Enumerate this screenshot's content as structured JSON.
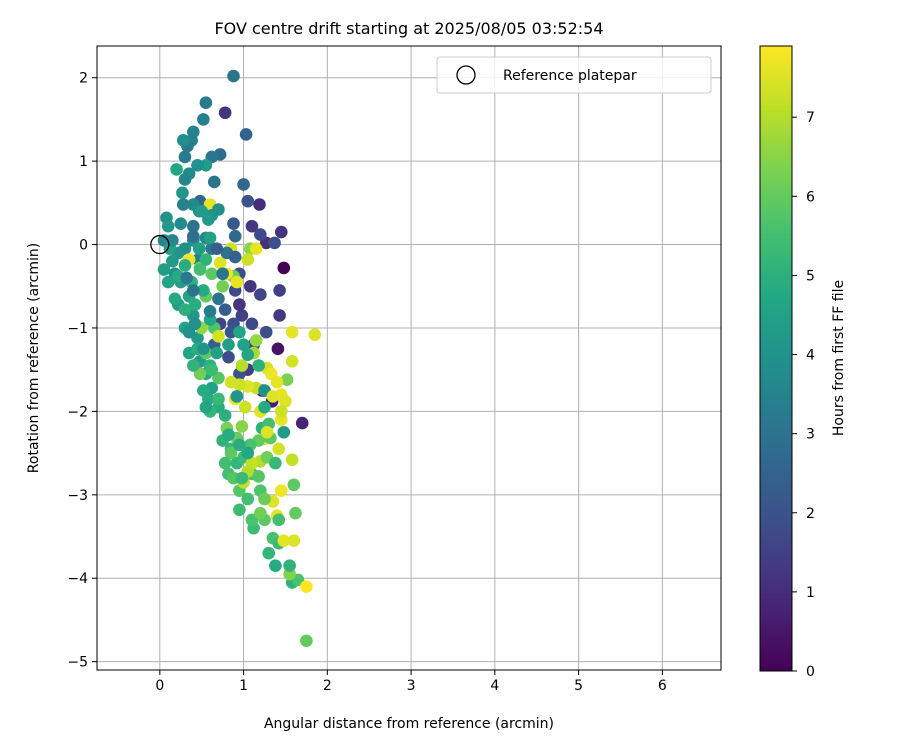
{
  "chart_data": {
    "type": "scatter",
    "title": "FOV centre drift starting at 2025/08/05 03:52:54",
    "xlabel": "Angular distance from reference (arcmin)",
    "ylabel": "Rotation from reference (arcmin)",
    "xlim": [
      -0.75,
      6.7
    ],
    "ylim": [
      -5.1,
      2.38
    ],
    "xticks": [
      0,
      1,
      2,
      3,
      4,
      5,
      6
    ],
    "yticks": [
      -5,
      -4,
      -3,
      -2,
      -1,
      0,
      1,
      2
    ],
    "xtick_labels": [
      "0",
      "1",
      "2",
      "3",
      "4",
      "5",
      "6"
    ],
    "ytick_labels": [
      "−5",
      "−4",
      "−3",
      "−2",
      "−1",
      "0",
      "1",
      "2"
    ],
    "grid": true,
    "legend": {
      "position": "top-right",
      "entries": [
        "Reference platepar"
      ]
    },
    "reference_point": {
      "x": 0,
      "y": 0
    },
    "colorbar": {
      "label": "Hours from first FF file",
      "min": 0,
      "max": 7.9,
      "ticks": [
        0,
        1,
        2,
        3,
        4,
        5,
        6,
        7
      ],
      "tick_labels": [
        "0",
        "1",
        "2",
        "3",
        "4",
        "5",
        "6",
        "7"
      ],
      "colormap": "viridis"
    },
    "series": [
      {
        "points": [
          [
            1.48,
            -0.28,
            0.0
          ],
          [
            1.41,
            -1.25,
            0.4
          ],
          [
            1.7,
            -2.14,
            0.8
          ],
          [
            1.45,
            0.15,
            1.2
          ],
          [
            1.19,
            0.48,
            1.0
          ],
          [
            1.1,
            0.22,
            1.3
          ],
          [
            1.27,
            0.02,
            1.1
          ],
          [
            1.43,
            -0.55,
            1.4
          ],
          [
            1.2,
            -0.6,
            1.6
          ],
          [
            1.37,
            0.02,
            1.9
          ],
          [
            0.98,
            -0.85,
            1.5
          ],
          [
            1.43,
            -0.85,
            1.3
          ],
          [
            1.22,
            -1.75,
            0.8
          ],
          [
            1.34,
            -1.88,
            0.6
          ],
          [
            1.2,
            0.12,
            1.7
          ],
          [
            0.9,
            -0.55,
            1.8
          ],
          [
            0.88,
            -0.95,
            1.9
          ],
          [
            1.05,
            -1.5,
            1.4
          ],
          [
            0.78,
            1.58,
            1.2
          ],
          [
            0.95,
            -0.72,
            1.2
          ],
          [
            0.72,
            -0.95,
            1.6
          ],
          [
            0.85,
            -1.05,
            2.1
          ],
          [
            0.65,
            -1.2,
            2.4
          ],
          [
            0.82,
            -1.35,
            1.8
          ],
          [
            0.95,
            -1.55,
            2.0
          ],
          [
            1.12,
            -1.2,
            1.5
          ],
          [
            1.27,
            -1.05,
            1.9
          ],
          [
            1.05,
            0.52,
            2.0
          ],
          [
            0.88,
            0.25,
            2.2
          ],
          [
            0.95,
            -0.35,
            1.9
          ],
          [
            1.03,
            1.32,
            2.5
          ],
          [
            1.0,
            0.72,
            2.6
          ],
          [
            0.88,
            2.02,
            3.0
          ],
          [
            0.72,
            1.08,
            2.8
          ],
          [
            0.62,
            1.05,
            3.1
          ],
          [
            0.55,
            1.7,
            3.3
          ],
          [
            0.52,
            1.5,
            3.4
          ],
          [
            0.65,
            0.75,
            3.0
          ],
          [
            0.48,
            0.52,
            2.6
          ],
          [
            0.4,
            1.35,
            3.5
          ],
          [
            0.38,
            1.25,
            3.4
          ],
          [
            0.33,
            1.18,
            3.3
          ],
          [
            0.28,
            1.25,
            3.8
          ],
          [
            0.35,
            0.85,
            3.7
          ],
          [
            0.3,
            0.78,
            3.6
          ],
          [
            0.27,
            0.62,
            4.1
          ],
          [
            0.2,
            0.9,
            4.7
          ],
          [
            0.4,
            0.48,
            3.7
          ],
          [
            0.47,
            0.4,
            3.8
          ],
          [
            0.58,
            0.4,
            3.5
          ],
          [
            0.55,
            0.08,
            3.6
          ],
          [
            0.62,
            -0.05,
            3.2
          ],
          [
            0.4,
            0.22,
            3.0
          ],
          [
            0.46,
            -0.18,
            3.5
          ],
          [
            0.3,
            -0.05,
            3.9
          ],
          [
            0.22,
            -0.1,
            4.1
          ],
          [
            0.15,
            -0.2,
            4.3
          ],
          [
            0.08,
            0.32,
            4.0
          ],
          [
            0.1,
            0.22,
            4.2
          ],
          [
            0.05,
            0.05,
            3.6
          ],
          [
            0.18,
            -0.35,
            3.9
          ],
          [
            0.25,
            -0.45,
            4.4
          ],
          [
            0.35,
            -0.62,
            4.6
          ],
          [
            0.22,
            -0.72,
            4.4
          ],
          [
            0.4,
            -0.85,
            4.2
          ],
          [
            0.3,
            -1.0,
            4.5
          ],
          [
            0.45,
            -1.12,
            4.3
          ],
          [
            0.35,
            -1.3,
            4.6
          ],
          [
            0.48,
            -1.4,
            4.4
          ],
          [
            0.55,
            -1.55,
            4.7
          ],
          [
            0.62,
            -1.72,
            4.5
          ],
          [
            0.58,
            -1.85,
            4.8
          ],
          [
            0.7,
            -1.95,
            4.9
          ],
          [
            0.78,
            -2.05,
            5.0
          ],
          [
            0.75,
            -2.35,
            5.1
          ],
          [
            0.85,
            -2.45,
            5.3
          ],
          [
            0.92,
            -2.62,
            5.2
          ],
          [
            0.82,
            -2.75,
            5.5
          ],
          [
            1.0,
            -2.55,
            5.4
          ],
          [
            1.1,
            -2.75,
            5.6
          ],
          [
            0.95,
            -2.95,
            5.8
          ],
          [
            1.05,
            -3.05,
            5.5
          ],
          [
            1.2,
            -2.95,
            5.7
          ],
          [
            1.25,
            -3.3,
            5.9
          ],
          [
            1.12,
            -3.4,
            5.4
          ],
          [
            1.35,
            -3.52,
            5.6
          ],
          [
            1.42,
            -3.58,
            5.3
          ],
          [
            1.3,
            -3.7,
            5.2
          ],
          [
            1.38,
            -3.85,
            4.8
          ],
          [
            1.58,
            -4.05,
            5.0
          ],
          [
            1.65,
            -4.02,
            5.6
          ],
          [
            1.75,
            -4.75,
            6.0
          ],
          [
            1.55,
            -3.95,
            6.4
          ],
          [
            0.95,
            -3.18,
            5.4
          ],
          [
            1.1,
            -3.3,
            5.6
          ],
          [
            0.48,
            -1.55,
            6.2
          ],
          [
            0.55,
            -1.3,
            5.9
          ],
          [
            0.6,
            -1.45,
            5.0
          ],
          [
            0.7,
            -1.6,
            5.8
          ],
          [
            0.65,
            -1.0,
            5.7
          ],
          [
            0.5,
            -1.0,
            6.6
          ],
          [
            0.55,
            -0.62,
            6.0
          ],
          [
            0.48,
            -0.28,
            6.3
          ],
          [
            0.62,
            -0.35,
            5.9
          ],
          [
            0.75,
            -0.5,
            6.2
          ],
          [
            0.88,
            -0.38,
            6.1
          ],
          [
            1.08,
            -0.05,
            6.5
          ],
          [
            1.05,
            -0.18,
            7.3
          ],
          [
            0.85,
            -0.05,
            7.4
          ],
          [
            0.72,
            -0.22,
            7.5
          ],
          [
            0.8,
            -0.35,
            7.7
          ],
          [
            0.92,
            -0.45,
            7.6
          ],
          [
            0.35,
            -0.18,
            7.7
          ],
          [
            0.6,
            0.48,
            7.6
          ],
          [
            1.85,
            -1.08,
            7.5
          ],
          [
            1.58,
            -1.4,
            7.4
          ],
          [
            1.52,
            -1.62,
            6.3
          ],
          [
            1.45,
            -1.8,
            7.6
          ],
          [
            1.5,
            -1.88,
            7.5
          ],
          [
            1.28,
            -1.48,
            7.4
          ],
          [
            1.33,
            -1.55,
            7.7
          ],
          [
            1.4,
            -1.65,
            7.6
          ],
          [
            1.15,
            -1.72,
            7.2
          ],
          [
            1.05,
            -1.7,
            7.5
          ],
          [
            0.95,
            -1.68,
            7.3
          ],
          [
            0.85,
            -1.65,
            7.4
          ],
          [
            0.9,
            -1.85,
            7.6
          ],
          [
            1.02,
            -1.95,
            7.3
          ],
          [
            1.2,
            -2.0,
            7.5
          ],
          [
            1.45,
            -2.1,
            7.6
          ],
          [
            1.42,
            -2.45,
            7.4
          ],
          [
            1.25,
            -2.33,
            7.6
          ],
          [
            1.2,
            -2.6,
            7.0
          ],
          [
            1.1,
            -2.62,
            7.2
          ],
          [
            1.05,
            -2.72,
            7.0
          ],
          [
            1.0,
            -2.85,
            7.1
          ],
          [
            1.35,
            -3.08,
            7.5
          ],
          [
            1.45,
            -2.95,
            7.7
          ],
          [
            1.4,
            -3.25,
            7.6
          ],
          [
            1.48,
            -3.55,
            7.6
          ],
          [
            1.6,
            -3.55,
            7.5
          ],
          [
            1.58,
            -2.58,
            7.2
          ],
          [
            1.75,
            -4.1,
            7.9
          ],
          [
            1.45,
            -2.0,
            7.3
          ],
          [
            1.12,
            -1.3,
            6.8
          ],
          [
            0.98,
            -1.45,
            7.0
          ],
          [
            0.7,
            -1.1,
            7.4
          ],
          [
            1.15,
            -0.05,
            7.6
          ],
          [
            1.15,
            -1.15,
            6.6
          ],
          [
            0.8,
            -2.2,
            6.3
          ],
          [
            0.92,
            -2.32,
            6.1
          ],
          [
            0.98,
            -2.18,
            6.5
          ],
          [
            1.18,
            -2.35,
            6.0
          ],
          [
            0.85,
            -2.5,
            5.9
          ],
          [
            0.78,
            -2.62,
            5.5
          ],
          [
            0.88,
            -2.8,
            5.8
          ],
          [
            0.98,
            -2.8,
            5.3
          ],
          [
            1.18,
            -2.78,
            5.8
          ],
          [
            1.28,
            -2.55,
            6.2
          ],
          [
            1.32,
            -2.32,
            5.9
          ],
          [
            1.6,
            -2.88,
            5.9
          ],
          [
            1.62,
            -3.22,
            6.0
          ],
          [
            1.25,
            -3.05,
            6.1
          ],
          [
            1.2,
            -3.22,
            6.2
          ],
          [
            1.08,
            -2.4,
            5.6
          ],
          [
            0.48,
            -0.3,
            5.5
          ],
          [
            0.38,
            -0.45,
            5.0
          ],
          [
            0.3,
            -0.25,
            4.9
          ],
          [
            0.22,
            -0.38,
            4.8
          ],
          [
            0.12,
            -0.05,
            4.5
          ],
          [
            0.05,
            -0.3,
            4.4
          ],
          [
            0.1,
            -0.45,
            4.6
          ],
          [
            0.18,
            -0.65,
            4.8
          ],
          [
            0.3,
            -0.78,
            5.0
          ],
          [
            0.42,
            -0.72,
            4.9
          ],
          [
            0.52,
            -0.55,
            4.8
          ],
          [
            0.6,
            -0.9,
            4.7
          ],
          [
            0.45,
            -1.25,
            4.9
          ],
          [
            0.4,
            -1.45,
            5.1
          ],
          [
            0.52,
            -1.75,
            4.8
          ],
          [
            0.6,
            -2.0,
            5.2
          ],
          [
            0.7,
            -1.85,
            5.3
          ],
          [
            0.62,
            -1.5,
            5.4
          ],
          [
            0.55,
            -1.95,
            4.6
          ],
          [
            0.35,
            -1.05,
            4.0
          ],
          [
            0.42,
            -0.95,
            3.9
          ],
          [
            0.52,
            -1.25,
            4.1
          ],
          [
            0.6,
            -0.8,
            3.3
          ],
          [
            0.7,
            -0.65,
            3.0
          ],
          [
            0.75,
            -0.35,
            3.1
          ],
          [
            0.55,
            0.95,
            4.3
          ],
          [
            0.7,
            0.42,
            3.9
          ],
          [
            0.62,
            0.35,
            4.0
          ],
          [
            0.4,
            0.05,
            3.9
          ],
          [
            0.58,
            0.3,
            4.2
          ],
          [
            0.5,
            0.4,
            4.3
          ],
          [
            0.45,
            0.95,
            4.0
          ],
          [
            0.3,
            1.05,
            3.2
          ],
          [
            0.4,
            0.1,
            2.9
          ],
          [
            0.8,
            -0.1,
            3.0
          ],
          [
            0.9,
            0.1,
            2.7
          ],
          [
            0.32,
            -0.4,
            3.2
          ],
          [
            0.4,
            -0.55,
            3.0
          ],
          [
            0.6,
            0.08,
            4.5
          ],
          [
            0.47,
            -0.05,
            4.4
          ],
          [
            0.25,
            0.25,
            3.7
          ],
          [
            0.15,
            0.05,
            3.6
          ],
          [
            0.28,
            0.48,
            3.5
          ],
          [
            0.55,
            -0.18,
            5.1
          ],
          [
            0.82,
            -1.2,
            4.4
          ],
          [
            0.95,
            -1.05,
            4.6
          ],
          [
            0.78,
            -0.78,
            2.3
          ],
          [
            1.1,
            -0.95,
            1.7
          ],
          [
            1.08,
            -0.5,
            1.2
          ],
          [
            0.68,
            -0.05,
            2.4
          ],
          [
            0.9,
            -0.15,
            2.5
          ],
          [
            1.22,
            -2.2,
            5.0
          ],
          [
            1.05,
            -2.5,
            4.7
          ],
          [
            0.95,
            -2.4,
            4.9
          ],
          [
            0.82,
            -2.28,
            4.9
          ],
          [
            1.38,
            -2.62,
            5.3
          ],
          [
            1.25,
            -1.95,
            4.8
          ],
          [
            1.3,
            -2.15,
            5.5
          ],
          [
            1.48,
            -2.25,
            4.3
          ],
          [
            1.05,
            -1.32,
            4.6
          ],
          [
            1.18,
            -1.45,
            5.0
          ],
          [
            1.0,
            -1.2,
            4.5
          ],
          [
            0.68,
            -1.3,
            4.5
          ],
          [
            0.92,
            -1.82,
            4.1
          ],
          [
            1.25,
            -1.75,
            3.9
          ],
          [
            1.58,
            -1.05,
            7.6
          ],
          [
            1.35,
            -1.82,
            7.5
          ],
          [
            1.28,
            -2.25,
            7.5
          ],
          [
            1.42,
            -3.3,
            5.5
          ],
          [
            1.55,
            -3.85,
            5.1
          ]
        ]
      }
    ]
  }
}
